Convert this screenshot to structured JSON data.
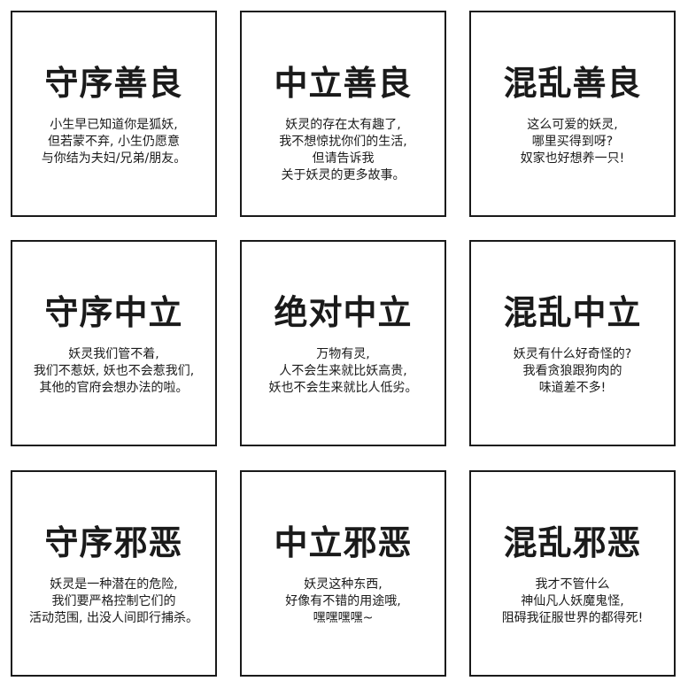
{
  "cards": [
    {
      "title": "守序善良",
      "lines": [
        "小生早已知道你是狐妖,",
        "但若蒙不弃, 小生仍愿意",
        "与你结为夫妇/兄弟/朋友。",
        ""
      ]
    },
    {
      "title": "中立善良",
      "lines": [
        "妖灵的存在太有趣了,",
        "我不想惊扰你们的生活,",
        "但请告诉我",
        "关于妖灵的更多故事。"
      ]
    },
    {
      "title": "混乱善良",
      "lines": [
        "这么可爱的妖灵,",
        "哪里买得到呀?",
        "奴家也好想养一只!",
        ""
      ]
    },
    {
      "title": "守序中立",
      "lines": [
        "妖灵我们管不着,",
        "我们不惹妖, 妖也不会惹我们,",
        "其他的官府会想办法的啦。",
        ""
      ]
    },
    {
      "title": "绝对中立",
      "lines": [
        "万物有灵,",
        "人不会生来就比妖高贵,",
        "妖也不会生来就比人低劣。",
        ""
      ]
    },
    {
      "title": "混乱中立",
      "lines": [
        "妖灵有什么好奇怪的?",
        "我看贪狼跟狗肉的",
        "味道差不多!",
        ""
      ]
    },
    {
      "title": "守序邪恶",
      "lines": [
        "妖灵是一种潜在的危险,",
        "我们要严格控制它们的",
        "活动范围, 出没人间即行捕杀。",
        ""
      ]
    },
    {
      "title": "中立邪恶",
      "lines": [
        "妖灵这种东西,",
        "好像有不错的用途哦,",
        "嘿嘿嘿嘿~",
        ""
      ]
    },
    {
      "title": "混乱邪恶",
      "lines": [
        "我才不管什么",
        "神仙凡人妖魔鬼怪,",
        "阻碍我征服世界的都得死!",
        ""
      ]
    }
  ]
}
